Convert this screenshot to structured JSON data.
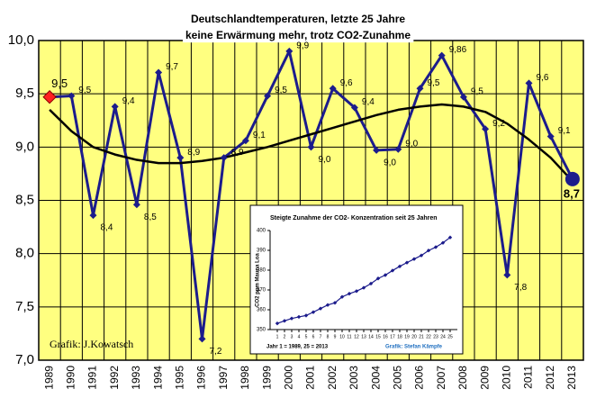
{
  "chart_data": [
    {
      "type": "line",
      "title": [
        "Deutschlandtemperaturen, letzte 25 Jahre",
        "keine Erwärmung mehr, trotz CO2-Zunahme"
      ],
      "annotation": "Grafik: J.Kowatsch",
      "categories": [
        "1989",
        "1990",
        "1991",
        "1992",
        "1993",
        "1994",
        "1995",
        "1996",
        "1997",
        "1998",
        "1999",
        "2000",
        "2001",
        "2002",
        "2003",
        "2004",
        "2005",
        "2006",
        "2007",
        "2008",
        "2009",
        "2010",
        "2011",
        "2012",
        "2013"
      ],
      "values": [
        9.47,
        9.48,
        8.36,
        9.38,
        8.46,
        9.7,
        8.9,
        7.2,
        8.9,
        9.06,
        9.48,
        9.9,
        9.0,
        9.55,
        9.37,
        8.97,
        8.98,
        9.55,
        9.86,
        9.47,
        9.17,
        7.8,
        9.6,
        9.1,
        8.7
      ],
      "value_labels": [
        "9,5",
        "9,5",
        "8,4",
        "9,4",
        "8,5",
        "9,7",
        "8,9",
        "7,2",
        "8,9",
        "9,1",
        "9,5",
        "9,9",
        "9,0",
        "9,6",
        "9,4",
        "9,0",
        "9,0",
        "9,5",
        "9,86",
        "9,5",
        "9,2",
        "7,8",
        "9,6",
        "9,1",
        "8,7"
      ],
      "trend": [
        9.35,
        9.15,
        9.0,
        8.93,
        8.88,
        8.85,
        8.85,
        8.87,
        8.9,
        8.95,
        9.0,
        9.06,
        9.12,
        9.18,
        9.24,
        9.3,
        9.35,
        9.38,
        9.4,
        9.38,
        9.33,
        9.22,
        9.07,
        8.9,
        8.68
      ],
      "color": "#1c1c8c",
      "trend_color": "#000000",
      "highlight_color": "#ff2020",
      "background": "#ffff80",
      "ylim": [
        7,
        10
      ],
      "yticks": [
        {
          "value": 7,
          "label": "7,0"
        },
        {
          "value": 7.5,
          "label": "7,5"
        },
        {
          "value": 8,
          "label": "8,0"
        },
        {
          "value": 8.5,
          "label": "8,5"
        },
        {
          "value": 9,
          "label": "9,0"
        },
        {
          "value": 9.5,
          "label": "9,5"
        },
        {
          "value": 10,
          "label": "10,0"
        }
      ],
      "grid": true
    },
    {
      "type": "line",
      "title": "Steigte Zunahme der CO2- Konzentration seit 25 Jahren",
      "y_label": "CO2 ppm Mauna Loa",
      "footer": "Jahr 1 = 1989, 25 = 2013",
      "credit": "Grafik: Stefan Kämpfe",
      "x": [
        1,
        2,
        3,
        4,
        5,
        6,
        7,
        8,
        9,
        10,
        11,
        12,
        13,
        14,
        15,
        16,
        17,
        18,
        19,
        20,
        21,
        22,
        23,
        24,
        25
      ],
      "values": [
        353.1,
        354.4,
        355.6,
        356.4,
        357.1,
        358.8,
        360.6,
        362.4,
        363.5,
        366.5,
        368.1,
        369.4,
        371.1,
        373.2,
        375.8,
        377.5,
        379.8,
        381.9,
        383.8,
        385.6,
        387.4,
        389.9,
        391.6,
        393.8,
        396.5
      ],
      "color": "#1c1c8c",
      "xlim": [
        0,
        26
      ],
      "xticks": [
        1,
        2,
        3,
        4,
        5,
        6,
        7,
        8,
        9,
        10,
        11,
        12,
        13,
        14,
        15,
        16,
        17,
        18,
        19,
        20,
        21,
        22,
        23,
        24,
        25
      ],
      "ylim": [
        350,
        400
      ],
      "yticks": [
        350,
        360,
        370,
        380,
        390,
        400
      ]
    }
  ]
}
